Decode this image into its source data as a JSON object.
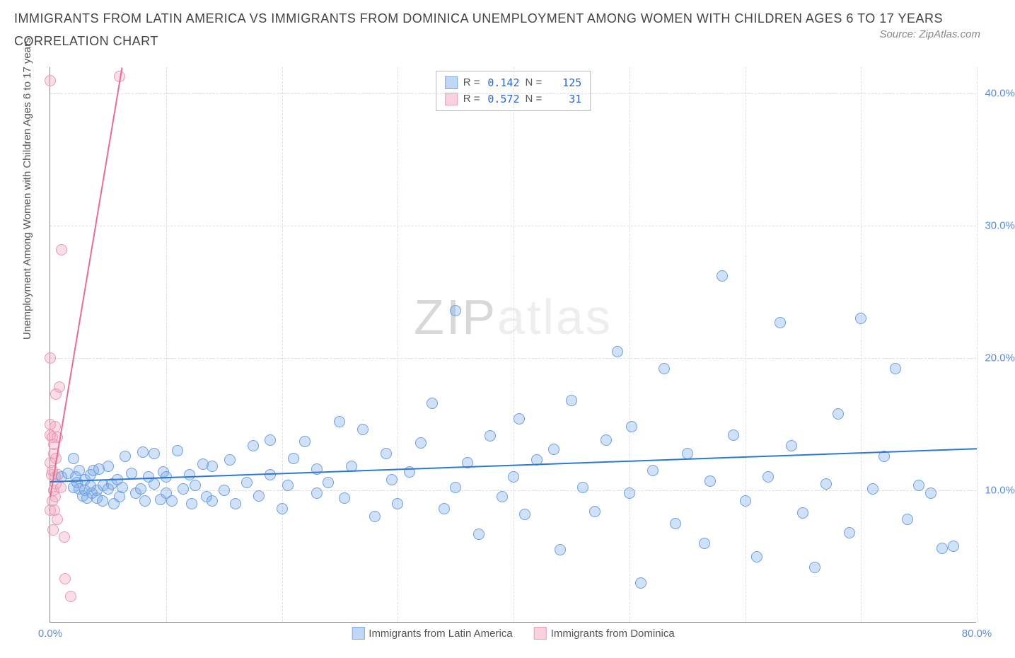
{
  "title": "IMMIGRANTS FROM LATIN AMERICA VS IMMIGRANTS FROM DOMINICA UNEMPLOYMENT AMONG WOMEN WITH CHILDREN AGES 6 TO 17 YEARS CORRELATION CHART",
  "source_text": "Source: ZipAtlas.com",
  "y_axis_label": "Unemployment Among Women with Children Ages 6 to 17 years",
  "watermark": {
    "part1": "ZIP",
    "part2": "atlas"
  },
  "colors": {
    "series_a_fill": "rgba(120,170,235,0.35)",
    "series_a_stroke": "#6da0e0",
    "series_a_line": "#2e78d2",
    "series_b_fill": "rgba(240,160,185,0.35)",
    "series_b_stroke": "#e89ab3",
    "series_b_line": "#e36f98",
    "tick_text": "#5b8dd6",
    "grid": "#dddddd"
  },
  "axes": {
    "xlim": [
      0,
      80
    ],
    "ylim": [
      0,
      42
    ],
    "x_ticks": [
      0,
      80
    ],
    "y_ticks": [
      10,
      20,
      30,
      40
    ],
    "x_tick_fmt": "%",
    "y_tick_fmt": "%",
    "v_gridlines_at": [
      10,
      20,
      30,
      40,
      50,
      60,
      70,
      80
    ],
    "h_gridlines_at": [
      10,
      20,
      30,
      40
    ]
  },
  "stats": {
    "rows": [
      {
        "swatch_fill": "rgba(150,190,240,0.6)",
        "swatch_border": "#7fa8e0",
        "r_label": "R =",
        "r": "0.142",
        "n_label": "N =",
        "n": "125"
      },
      {
        "swatch_fill": "rgba(245,180,200,0.6)",
        "swatch_border": "#e8a0b8",
        "r_label": "R =",
        "r": "0.572",
        "n_label": "N =",
        "n": "  31"
      }
    ]
  },
  "legend": {
    "items": [
      {
        "label": "Immigrants from Latin America",
        "fill": "rgba(150,190,240,0.6)",
        "border": "#7fa8e0"
      },
      {
        "label": "Immigrants from Dominica",
        "fill": "rgba(245,180,200,0.6)",
        "border": "#e8a0b8"
      }
    ]
  },
  "marker_radius": 8,
  "series_a": {
    "trend": {
      "x1": 0,
      "y1": 10.7,
      "x2": 80,
      "y2": 13.2
    },
    "points": [
      [
        1,
        11
      ],
      [
        1.5,
        11.3
      ],
      [
        2,
        10.2
      ],
      [
        2,
        12.4
      ],
      [
        2.2,
        11.0
      ],
      [
        2.3,
        10.6
      ],
      [
        2.5,
        10.1
      ],
      [
        2.5,
        11.5
      ],
      [
        2.8,
        9.6
      ],
      [
        3,
        10.0
      ],
      [
        3,
        10.8
      ],
      [
        3.2,
        9.4
      ],
      [
        3.5,
        10.3
      ],
      [
        3.5,
        11.2
      ],
      [
        3.6,
        9.8
      ],
      [
        3.7,
        11.5
      ],
      [
        4,
        9.4
      ],
      [
        4,
        10.0
      ],
      [
        4.2,
        11.6
      ],
      [
        4.5,
        9.2
      ],
      [
        4.6,
        10.4
      ],
      [
        5,
        10.1
      ],
      [
        5,
        11.8
      ],
      [
        5.3,
        10.5
      ],
      [
        5.5,
        9.0
      ],
      [
        5.8,
        10.8
      ],
      [
        6,
        9.5
      ],
      [
        6.2,
        10.2
      ],
      [
        6.5,
        12.6
      ],
      [
        7,
        11.3
      ],
      [
        7.4,
        9.8
      ],
      [
        7.8,
        10.1
      ],
      [
        8,
        12.9
      ],
      [
        8.2,
        9.2
      ],
      [
        8.5,
        11.0
      ],
      [
        9,
        10.5
      ],
      [
        9,
        12.8
      ],
      [
        9.5,
        9.3
      ],
      [
        9.8,
        11.4
      ],
      [
        10,
        9.8
      ],
      [
        10,
        11.0
      ],
      [
        10.5,
        9.2
      ],
      [
        11,
        13.0
      ],
      [
        11.5,
        10.1
      ],
      [
        12,
        11.2
      ],
      [
        12.2,
        9.0
      ],
      [
        12.5,
        10.4
      ],
      [
        13.2,
        12.0
      ],
      [
        13.5,
        9.5
      ],
      [
        14,
        9.2
      ],
      [
        14,
        11.8
      ],
      [
        15,
        10.0
      ],
      [
        15.5,
        12.3
      ],
      [
        16,
        9.0
      ],
      [
        17,
        10.6
      ],
      [
        17.5,
        13.4
      ],
      [
        18,
        9.6
      ],
      [
        19,
        11.2
      ],
      [
        19,
        13.8
      ],
      [
        20,
        8.6
      ],
      [
        20.5,
        10.4
      ],
      [
        21,
        12.4
      ],
      [
        22,
        13.7
      ],
      [
        23,
        9.8
      ],
      [
        23,
        11.6
      ],
      [
        24,
        10.6
      ],
      [
        25,
        15.2
      ],
      [
        25.4,
        9.4
      ],
      [
        26,
        11.8
      ],
      [
        27,
        14.6
      ],
      [
        28,
        8.0
      ],
      [
        29,
        12.8
      ],
      [
        29.5,
        10.8
      ],
      [
        30,
        9.0
      ],
      [
        31,
        11.4
      ],
      [
        32,
        13.6
      ],
      [
        33,
        16.6
      ],
      [
        34,
        8.6
      ],
      [
        35,
        10.2
      ],
      [
        35,
        23.6
      ],
      [
        36,
        12.1
      ],
      [
        37,
        6.7
      ],
      [
        38,
        14.1
      ],
      [
        39,
        9.5
      ],
      [
        40,
        11.0
      ],
      [
        40.5,
        15.4
      ],
      [
        41,
        8.2
      ],
      [
        42,
        12.3
      ],
      [
        43.5,
        13.1
      ],
      [
        44,
        5.5
      ],
      [
        45,
        16.8
      ],
      [
        46,
        10.2
      ],
      [
        47,
        8.4
      ],
      [
        48,
        13.8
      ],
      [
        49,
        20.5
      ],
      [
        50,
        9.8
      ],
      [
        50.2,
        14.8
      ],
      [
        51,
        3.0
      ],
      [
        52,
        11.5
      ],
      [
        53,
        19.2
      ],
      [
        54,
        7.5
      ],
      [
        55,
        12.8
      ],
      [
        56.5,
        6.0
      ],
      [
        57,
        10.7
      ],
      [
        58,
        26.2
      ],
      [
        59,
        14.2
      ],
      [
        60,
        9.2
      ],
      [
        61,
        5.0
      ],
      [
        62,
        11.0
      ],
      [
        63,
        22.7
      ],
      [
        64,
        13.4
      ],
      [
        65,
        8.3
      ],
      [
        66,
        4.2
      ],
      [
        67,
        10.5
      ],
      [
        68,
        15.8
      ],
      [
        69,
        6.8
      ],
      [
        70,
        23.0
      ],
      [
        71,
        10.1
      ],
      [
        72,
        12.6
      ],
      [
        73,
        19.2
      ],
      [
        74,
        7.8
      ],
      [
        75,
        10.4
      ],
      [
        76,
        9.8
      ],
      [
        77,
        5.6
      ],
      [
        78,
        5.8
      ]
    ]
  },
  "series_b": {
    "trend": {
      "x1": 0,
      "y1": 9.5,
      "x2": 6.2,
      "y2": 42
    },
    "points": [
      [
        0,
        8.5
      ],
      [
        0,
        12.1
      ],
      [
        0,
        14.2
      ],
      [
        0,
        15.0
      ],
      [
        0,
        20.0
      ],
      [
        0,
        41.0
      ],
      [
        0.1,
        11.2
      ],
      [
        0.2,
        9.2
      ],
      [
        0.2,
        11.5
      ],
      [
        0.2,
        14.0
      ],
      [
        0.25,
        7.0
      ],
      [
        0.3,
        10.0
      ],
      [
        0.3,
        12.8
      ],
      [
        0.3,
        13.5
      ],
      [
        0.35,
        8.5
      ],
      [
        0.4,
        11.0
      ],
      [
        0.4,
        14.8
      ],
      [
        0.45,
        9.5
      ],
      [
        0.5,
        10.5
      ],
      [
        0.5,
        12.4
      ],
      [
        0.5,
        17.3
      ],
      [
        0.6,
        7.8
      ],
      [
        0.6,
        14.0
      ],
      [
        0.7,
        11.2
      ],
      [
        0.8,
        17.8
      ],
      [
        0.9,
        10.2
      ],
      [
        1.0,
        28.2
      ],
      [
        1.2,
        6.5
      ],
      [
        1.3,
        3.3
      ],
      [
        1.8,
        2.0
      ],
      [
        6,
        41.3
      ]
    ]
  }
}
